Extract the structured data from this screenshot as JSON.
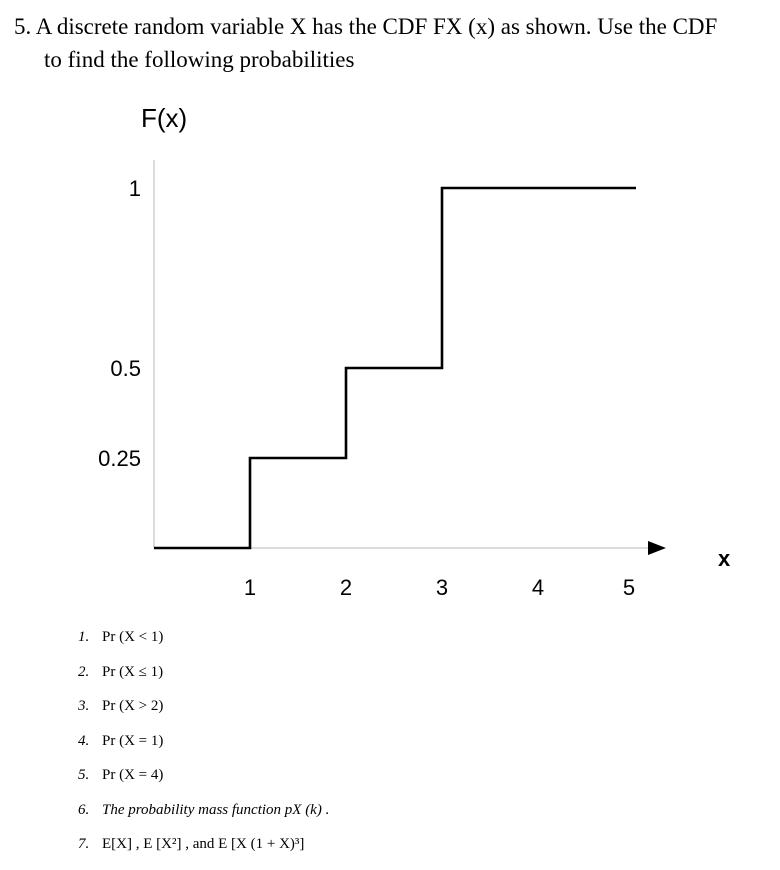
{
  "problem": {
    "line1": "5.  A discrete random variable X has the CDF FX (x) as shown. Use the CDF",
    "line2": "to find the following probabilities"
  },
  "chart_data": {
    "type": "line",
    "step": true,
    "title": "F(x)",
    "ylabel": "F(x)",
    "xlabel": "x",
    "x_ticks": [
      "1",
      "2",
      "3",
      "4",
      "5"
    ],
    "y_ticks": [
      "0.25",
      "0.5",
      "1"
    ],
    "xlim": [
      0,
      5.2
    ],
    "ylim": [
      0,
      1
    ],
    "points": [
      {
        "x": 0,
        "y": 0
      },
      {
        "x": 1,
        "y": 0
      },
      {
        "x": 1,
        "y": 0.25
      },
      {
        "x": 2,
        "y": 0.25
      },
      {
        "x": 2,
        "y": 0.5
      },
      {
        "x": 3,
        "y": 0.5
      },
      {
        "x": 3,
        "y": 1
      },
      {
        "x": 5,
        "y": 1
      }
    ],
    "x_axis_arrow": true,
    "grid": false
  },
  "questions": [
    {
      "num": "1.",
      "text": "Pr (X < 1)",
      "italic": false
    },
    {
      "num": "2.",
      "text": "Pr (X ≤ 1)",
      "italic": false
    },
    {
      "num": "3.",
      "text": "Pr (X > 2)",
      "italic": false
    },
    {
      "num": "4.",
      "text": "Pr (X = 1)",
      "italic": false
    },
    {
      "num": "5.",
      "text": "Pr (X = 4)",
      "italic": false
    },
    {
      "num": "6.",
      "text": "The probability mass function pX (k) .",
      "italic": true
    },
    {
      "num": "7.",
      "text": "E[X] , E [X²] , and E [X (1 + X)³]",
      "italic": false
    }
  ]
}
